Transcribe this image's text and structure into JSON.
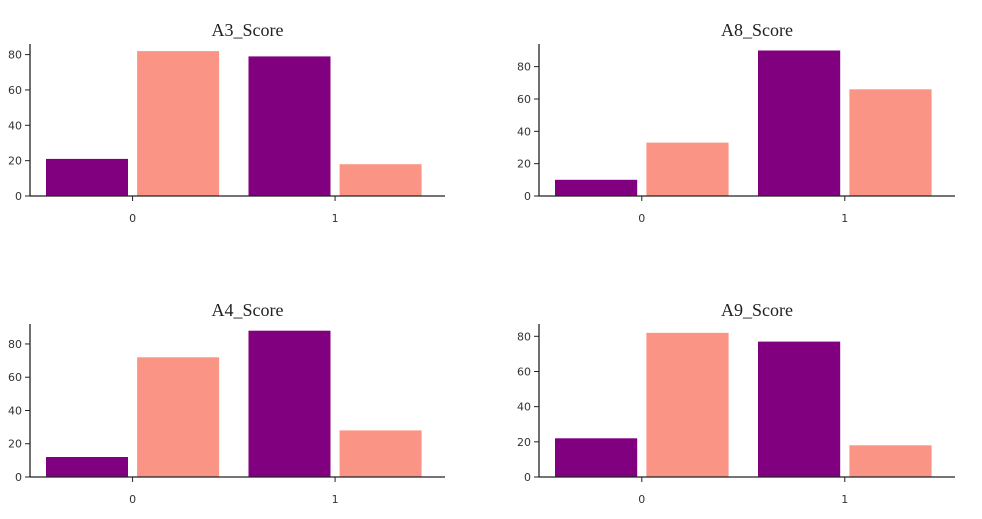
{
  "colors": {
    "series0": "#800080",
    "series1": "#fa9586"
  },
  "chart_data": [
    {
      "type": "bar",
      "title": "A3_Score",
      "categories": [
        "0",
        "1"
      ],
      "series": [
        {
          "values": [
            21,
            79
          ]
        },
        {
          "values": [
            82,
            18
          ]
        }
      ],
      "ylim": [
        0,
        86
      ],
      "yticks": [
        0,
        20,
        40,
        60,
        80
      ],
      "xlabel": "",
      "ylabel": "",
      "grid": false
    },
    {
      "type": "bar",
      "title": "A8_Score",
      "categories": [
        "0",
        "1"
      ],
      "series": [
        {
          "values": [
            10,
            90
          ]
        },
        {
          "values": [
            33,
            66
          ]
        }
      ],
      "ylim": [
        0,
        94
      ],
      "yticks": [
        0,
        20,
        40,
        60,
        80
      ],
      "xlabel": "",
      "ylabel": "",
      "grid": false
    },
    {
      "type": "bar",
      "title": "A4_Score",
      "categories": [
        "0",
        "1"
      ],
      "series": [
        {
          "values": [
            12,
            88
          ]
        },
        {
          "values": [
            72,
            28
          ]
        }
      ],
      "ylim": [
        0,
        92
      ],
      "yticks": [
        0,
        20,
        40,
        60,
        80
      ],
      "xlabel": "",
      "ylabel": "",
      "grid": false
    },
    {
      "type": "bar",
      "title": "A9_Score",
      "categories": [
        "0",
        "1"
      ],
      "series": [
        {
          "values": [
            22,
            77
          ]
        },
        {
          "values": [
            82,
            18
          ]
        }
      ],
      "ylim": [
        0,
        87
      ],
      "yticks": [
        0,
        20,
        40,
        60,
        80
      ],
      "xlabel": "",
      "ylabel": "",
      "grid": false
    }
  ]
}
